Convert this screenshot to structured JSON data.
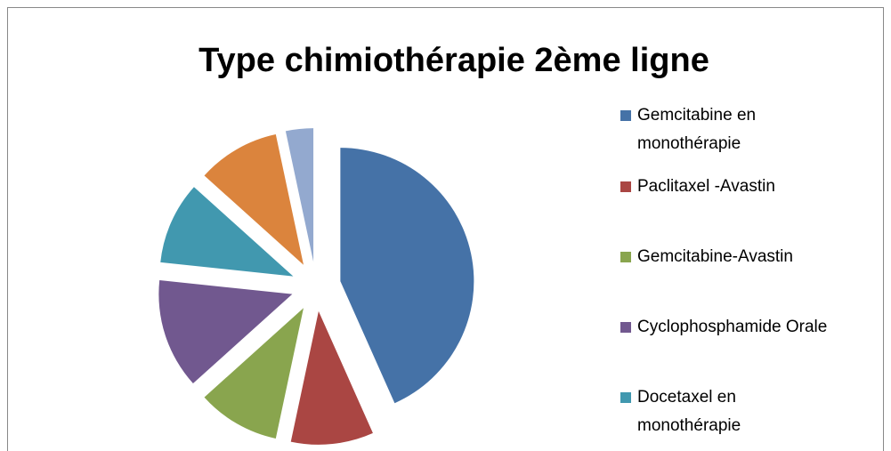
{
  "chart_data": {
    "type": "pie",
    "title": "Type chimiothérapie 2ème ligne",
    "categories": [
      "Gemcitabine en monothérapie",
      "Paclitaxel -Avastin",
      "Gemcitabine-Avastin",
      "Cyclophosphamide Orale",
      "Docetaxel en monothérapie",
      null,
      null
    ],
    "values": [
      13,
      3,
      3,
      4,
      3,
      3,
      1
    ],
    "colors": [
      "#4572a7",
      "#aa4643",
      "#89a54e",
      "#71588f",
      "#4198af",
      "#db843d",
      "#93a9cf"
    ],
    "exploded": true,
    "legend": "right"
  }
}
